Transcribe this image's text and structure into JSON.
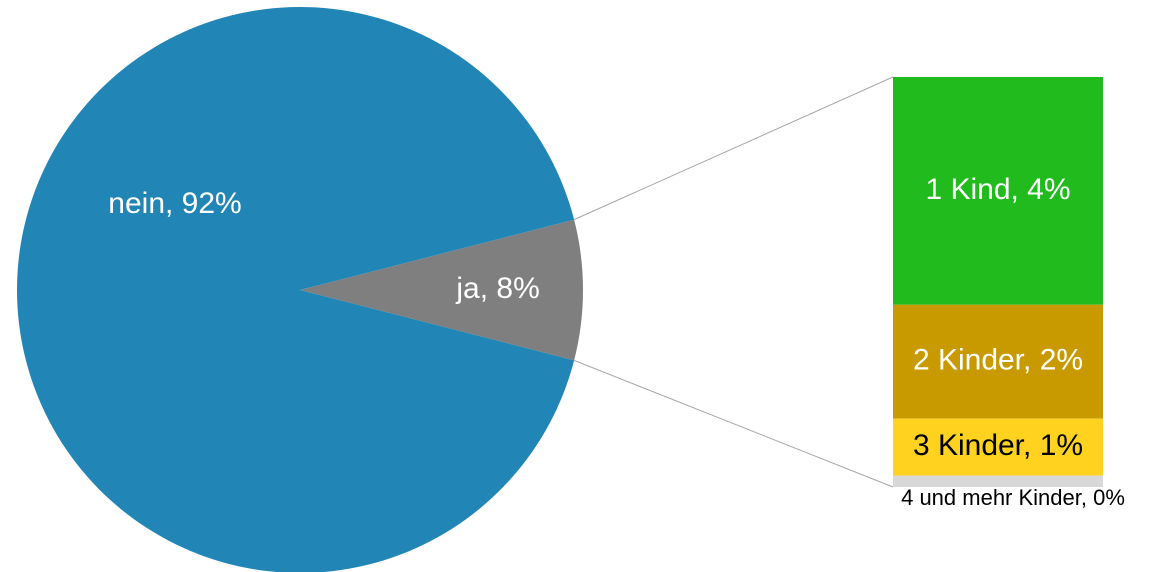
{
  "chart_data": {
    "type": "bar-of-pie",
    "pie": {
      "slices": [
        {
          "label": "nein",
          "value": 92,
          "color": "#2186b6",
          "text_color": "#ffffff"
        },
        {
          "label": "ja",
          "value": 8,
          "color": "#7f7f7f",
          "text_color": "#ffffff"
        }
      ]
    },
    "bar": {
      "parent_slice": "ja",
      "segments": [
        {
          "label": "1 Kind",
          "value": 4,
          "color": "#22bb1d",
          "text_color": "#ffffff"
        },
        {
          "label": "2 Kinder",
          "value": 2,
          "color": "#c99a00",
          "text_color": "#ffffff"
        },
        {
          "label": "3 Kinder",
          "value": 1,
          "color": "#ffd21f",
          "text_color": "#000000"
        },
        {
          "label": "4 und mehr Kinder",
          "value": 0.2,
          "color": "#d8d8d8",
          "text_color": "#000000"
        }
      ]
    },
    "value_suffix": "%",
    "connector_color": "#a6a6a6",
    "title": "",
    "legend": "none"
  }
}
